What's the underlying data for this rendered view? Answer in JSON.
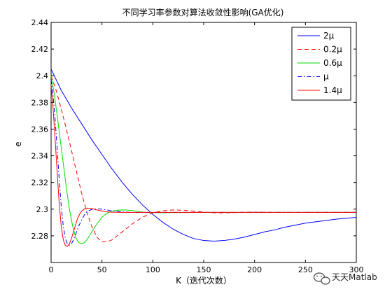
{
  "chart_data": {
    "type": "line",
    "title": "不同学习率参数对算法收敛性影响(GA优化)",
    "xlabel": "K（迭代次数）",
    "ylabel": "e",
    "xlim": [
      0,
      300
    ],
    "ylim": [
      2.26,
      2.44
    ],
    "xticks": [
      "0",
      "50",
      "100",
      "150",
      "200",
      "250",
      "300"
    ],
    "yticks": [
      "2.28",
      "2.3",
      "2.32",
      "2.34",
      "2.36",
      "2.38",
      "2.4",
      "2.42",
      "2.44"
    ],
    "grid": false,
    "legend_position": "top-right",
    "series": [
      {
        "name": "2μ",
        "color": "#0000ff",
        "style": "solid",
        "x": [
          0,
          10,
          20,
          30,
          40,
          50,
          60,
          70,
          80,
          90,
          100,
          110,
          120,
          130,
          140,
          150,
          160,
          170,
          180,
          190,
          200,
          210,
          220,
          230,
          240,
          250,
          260,
          270,
          280,
          290,
          300
        ],
        "y": [
          2.405,
          2.389,
          2.376,
          2.364,
          2.352,
          2.341,
          2.33,
          2.32,
          2.311,
          2.303,
          2.296,
          2.29,
          2.285,
          2.281,
          2.278,
          2.2765,
          2.276,
          2.2765,
          2.2775,
          2.279,
          2.281,
          2.283,
          2.2845,
          2.2865,
          2.288,
          2.2895,
          2.2905,
          2.2915,
          2.2925,
          2.2932,
          2.2938
        ]
      },
      {
        "name": "0.2μ",
        "color": "#ff0000",
        "style": "dashed",
        "x": [
          0,
          5,
          10,
          15,
          20,
          25,
          30,
          35,
          40,
          45,
          50,
          55,
          60,
          65,
          70,
          80,
          90,
          100,
          110,
          120,
          130,
          140,
          150,
          160,
          170,
          180,
          190,
          200,
          220,
          240,
          260,
          280,
          300
        ],
        "y": [
          2.4,
          2.389,
          2.375,
          2.36,
          2.344,
          2.328,
          2.312,
          2.298,
          2.287,
          2.279,
          2.2755,
          2.2755,
          2.277,
          2.28,
          2.283,
          2.289,
          2.294,
          2.2972,
          2.2988,
          2.2994,
          2.2992,
          2.2985,
          2.2978,
          2.2973,
          2.2972,
          2.2974,
          2.2977,
          2.2978,
          2.2976,
          2.2975,
          2.2976,
          2.2976,
          2.2976
        ]
      },
      {
        "name": "0.6μ",
        "color": "#00dd00",
        "style": "solid",
        "x": [
          0,
          3,
          6,
          9,
          12,
          15,
          18,
          21,
          24,
          27,
          30,
          33,
          36,
          40,
          45,
          50,
          55,
          60,
          65,
          70,
          75,
          80,
          85,
          90,
          95,
          100,
          110,
          120,
          140,
          160,
          180,
          200,
          250,
          300
        ],
        "y": [
          2.4,
          2.387,
          2.37,
          2.352,
          2.334,
          2.316,
          2.3,
          2.288,
          2.279,
          2.275,
          2.274,
          2.275,
          2.278,
          2.283,
          2.289,
          2.294,
          2.297,
          2.2985,
          2.2992,
          2.2994,
          2.2993,
          2.2989,
          2.2983,
          2.2978,
          2.2975,
          2.2974,
          2.2973,
          2.2974,
          2.2975,
          2.2976,
          2.2976,
          2.2976,
          2.2976,
          2.2976
        ]
      },
      {
        "name": "μ",
        "color": "#0000ff",
        "style": "dashdot",
        "x": [
          0,
          2,
          4,
          6,
          8,
          10,
          12,
          14,
          16,
          18,
          20,
          22,
          24,
          27,
          30,
          33,
          36,
          40,
          45,
          50,
          55,
          60,
          70,
          80,
          90,
          100,
          120,
          150,
          200,
          250,
          300
        ],
        "y": [
          2.397,
          2.385,
          2.367,
          2.345,
          2.322,
          2.302,
          2.287,
          2.278,
          2.274,
          2.273,
          2.274,
          2.277,
          2.281,
          2.287,
          2.292,
          2.296,
          2.2985,
          2.2998,
          2.3002,
          2.3,
          2.2994,
          2.2987,
          2.2979,
          2.2975,
          2.2974,
          2.2975,
          2.2976,
          2.2976,
          2.2976,
          2.2976,
          2.2976
        ]
      },
      {
        "name": "1.4μ",
        "color": "#ff0000",
        "style": "solid",
        "x": [
          0,
          2,
          4,
          6,
          8,
          10,
          12,
          14,
          16,
          18,
          20,
          22,
          24,
          26,
          28,
          30,
          33,
          36,
          40,
          45,
          50,
          55,
          60,
          70,
          80,
          100,
          120,
          150,
          200,
          250,
          300
        ],
        "y": [
          2.393,
          2.375,
          2.352,
          2.327,
          2.304,
          2.287,
          2.277,
          2.2728,
          2.272,
          2.274,
          2.278,
          2.283,
          2.288,
          2.293,
          2.296,
          2.2985,
          2.3003,
          2.3008,
          2.3004,
          2.2994,
          2.2986,
          2.298,
          2.2977,
          2.2976,
          2.2976,
          2.2976,
          2.2976,
          2.2976,
          2.2976,
          2.2976,
          2.2976
        ]
      }
    ]
  },
  "watermark": {
    "text": "天天Matlab",
    "icon": "wechat-icon"
  }
}
